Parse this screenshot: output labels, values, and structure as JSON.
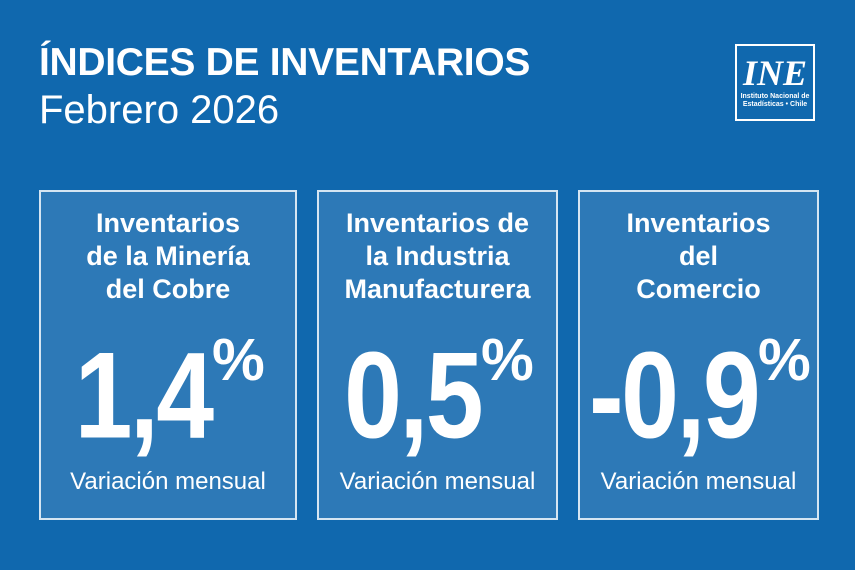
{
  "header": {
    "title": "ÍNDICES DE INVENTARIOS",
    "subtitle": "Febrero 2026"
  },
  "logo": {
    "name": "INE",
    "line1": "Instituto Nacional de",
    "line2": "Estadísticas • Chile"
  },
  "cards": [
    {
      "line1": "Inventarios",
      "line2": "de la Minería",
      "line3": "del Cobre",
      "value": "1,4",
      "unit": "%",
      "caption": "Variación mensual"
    },
    {
      "line1": "Inventarios de",
      "line2": "la Industria",
      "line3": "Manufacturera",
      "value": "0,5",
      "unit": "%",
      "caption": "Variación mensual"
    },
    {
      "line1": "Inventarios",
      "line2": "del",
      "line3": "Comercio",
      "value": "-0,9",
      "unit": "%",
      "caption": "Variación mensual"
    }
  ],
  "chart_data": {
    "type": "table",
    "title": "ÍNDICES DE INVENTARIOS",
    "subtitle": "Febrero 2026",
    "categories": [
      "Inventarios de la Minería del Cobre",
      "Inventarios de la Industria Manufacturera",
      "Inventarios del Comercio"
    ],
    "values": [
      1.4,
      0.5,
      -0.9
    ],
    "unit": "%",
    "measure": "Variación mensual"
  },
  "colors": {
    "background": "#1068ae",
    "card": "#2d79b7",
    "border": "#d5e5f2",
    "text": "#ffffff"
  }
}
